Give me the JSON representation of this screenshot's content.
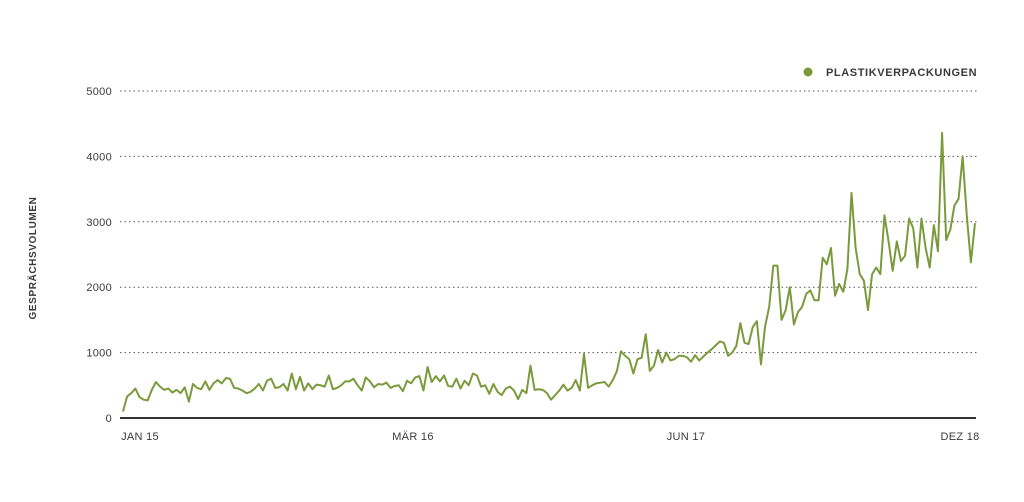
{
  "chart_data": {
    "type": "line",
    "ylabel": "GESPRÄCHSVOLUMEN",
    "ylim": [
      0,
      5000
    ],
    "y_ticks": [
      "0",
      "1000",
      "2000",
      "3000",
      "4000",
      "5000"
    ],
    "x_tick_labels": [
      "JAN 15",
      "MÄR 16",
      "JUN 17",
      "DEZ 18"
    ],
    "grid": "horizontal-dotted",
    "legend_position": "top-right",
    "color": "#7a9a3c",
    "series": [
      {
        "name": "PLASTIKVERPACKUNGEN",
        "values": [
          100,
          330,
          380,
          450,
          320,
          280,
          270,
          430,
          550,
          480,
          430,
          450,
          390,
          430,
          380,
          470,
          250,
          520,
          460,
          440,
          560,
          430,
          530,
          580,
          530,
          610,
          600,
          460,
          450,
          420,
          380,
          400,
          450,
          520,
          420,
          570,
          600,
          460,
          470,
          520,
          420,
          680,
          440,
          630,
          420,
          530,
          440,
          510,
          500,
          480,
          650,
          440,
          460,
          500,
          560,
          560,
          600,
          500,
          420,
          620,
          560,
          470,
          520,
          510,
          540,
          460,
          490,
          500,
          410,
          570,
          530,
          620,
          640,
          420,
          780,
          550,
          640,
          560,
          650,
          490,
          480,
          600,
          450,
          570,
          500,
          680,
          650,
          480,
          500,
          370,
          520,
          400,
          350,
          450,
          480,
          420,
          290,
          430,
          380,
          800,
          430,
          440,
          430,
          380,
          280,
          350,
          420,
          510,
          420,
          460,
          580,
          420,
          980,
          460,
          500,
          530,
          540,
          550,
          480,
          580,
          720,
          1020,
          950,
          900,
          680,
          900,
          920,
          1280,
          720,
          800,
          1040,
          850,
          1000,
          880,
          900,
          950,
          950,
          930,
          860,
          960,
          880,
          940,
          1000,
          1050,
          1110,
          1170,
          1150,
          950,
          1000,
          1100,
          1450,
          1150,
          1130,
          1390,
          1480,
          820,
          1400,
          1700,
          2330,
          2330,
          1500,
          1650,
          2000,
          1430,
          1620,
          1700,
          1900,
          1950,
          1800,
          1800,
          2450,
          2350,
          2600,
          1870,
          2050,
          1930,
          2280,
          3440,
          2600,
          2200,
          2100,
          1650,
          2200,
          2300,
          2200,
          3100,
          2700,
          2250,
          2700,
          2400,
          2480,
          3050,
          2900,
          2300,
          3050,
          2600,
          2300,
          2950,
          2550,
          4360,
          2720,
          2880,
          3250,
          3350,
          4000,
          3100,
          2380,
          2980
        ]
      }
    ]
  }
}
